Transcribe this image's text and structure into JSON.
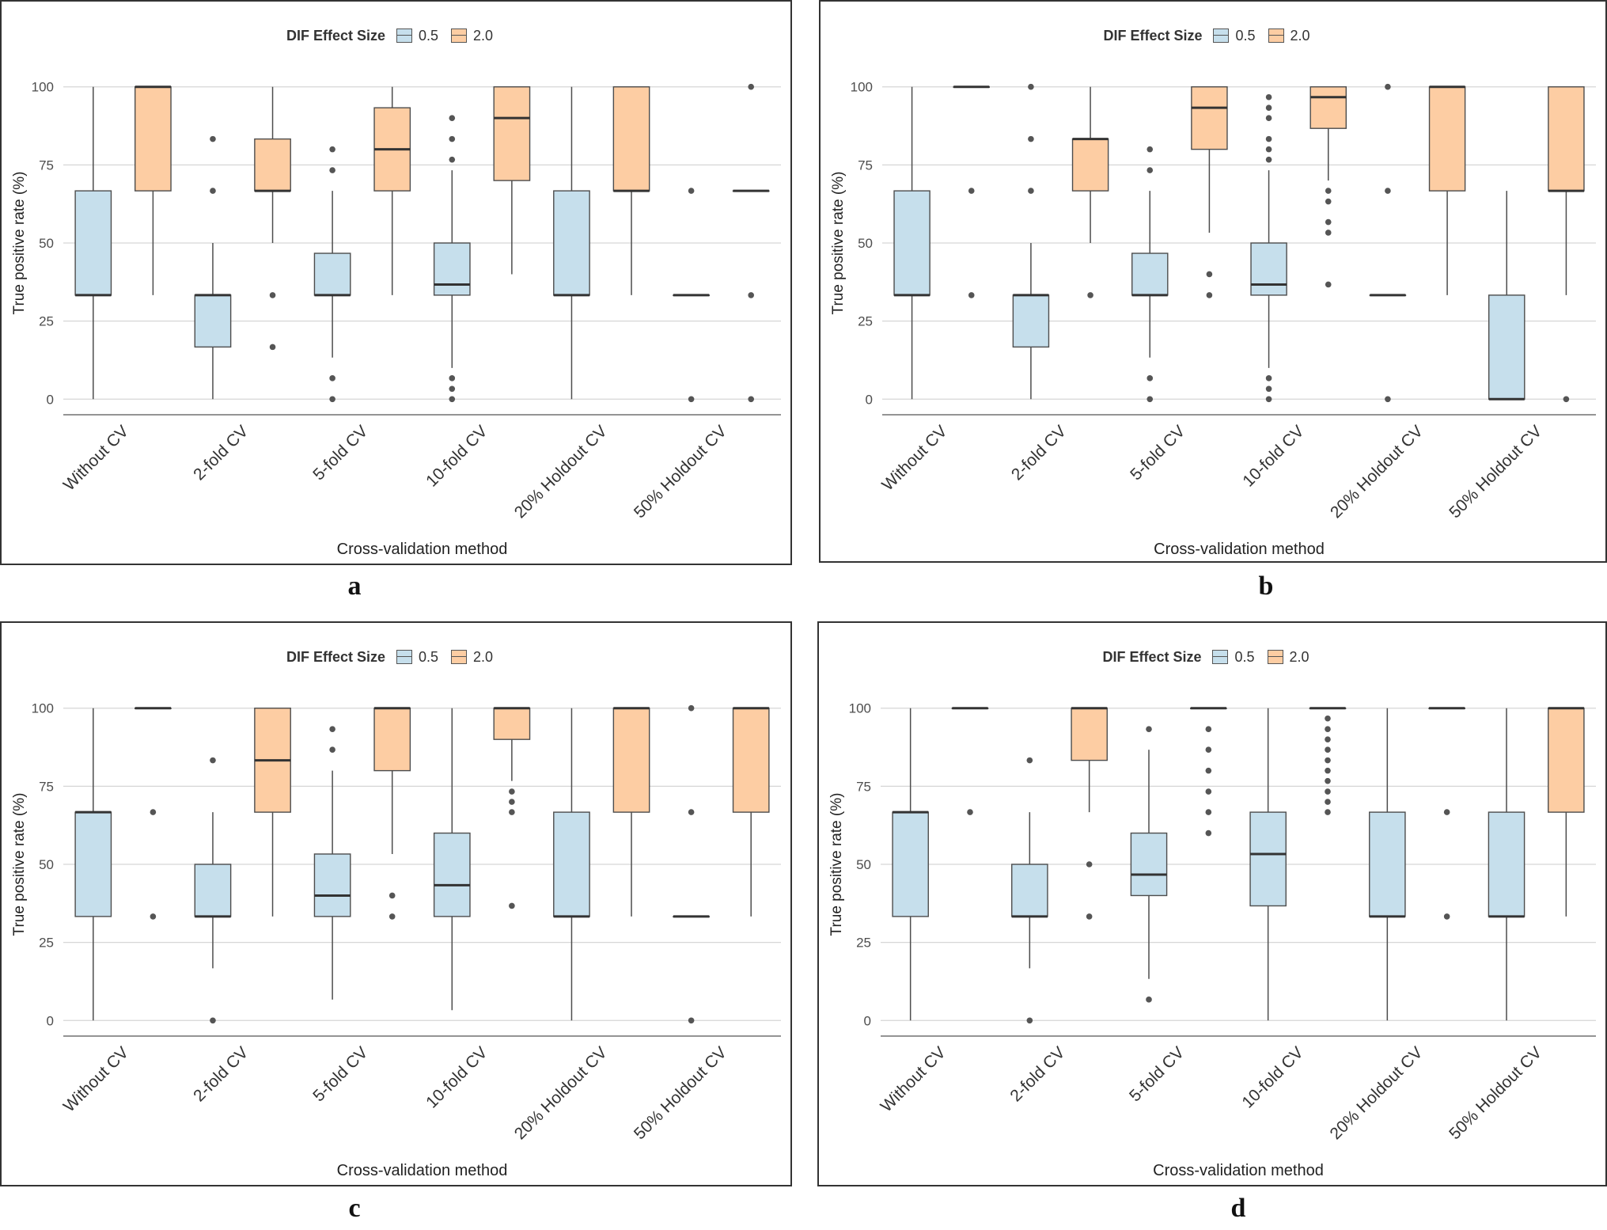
{
  "legend": {
    "title": "DIF Effect Size",
    "items": [
      {
        "label": "0.5",
        "color": "#c6dfec"
      },
      {
        "label": "2.0",
        "color": "#fdcda3"
      }
    ]
  },
  "chart_data": [
    {
      "panel": "a",
      "type": "boxplot",
      "xlabel": "Cross-validation method",
      "ylabel": "True positive rate (%)",
      "ylim": [
        -5,
        105
      ],
      "yticks": [
        0,
        25,
        50,
        75,
        100
      ],
      "grid": "horizontal",
      "legend_position": "top",
      "categories": [
        "Without CV",
        "2-fold CV",
        "5-fold CV",
        "10-fold CV",
        "20% Holdout CV",
        "50% Holdout CV"
      ],
      "series": [
        {
          "name": "0.5",
          "boxes": [
            {
              "min": 0,
              "q1": 33.3,
              "median": 33.3,
              "q3": 66.7,
              "max": 100,
              "outliers": []
            },
            {
              "min": 0,
              "q1": 16.7,
              "median": 33.3,
              "q3": 33.3,
              "max": 50,
              "outliers": [
                66.7,
                83.3
              ]
            },
            {
              "min": 13.3,
              "q1": 33.3,
              "median": 33.3,
              "q3": 46.7,
              "max": 66.7,
              "outliers": [
                0,
                6.7,
                73.3,
                80
              ]
            },
            {
              "min": 10,
              "q1": 33.3,
              "median": 36.7,
              "q3": 50,
              "max": 73.3,
              "outliers": [
                0,
                3.3,
                6.7,
                76.7,
                83.3,
                90
              ]
            },
            {
              "min": 0,
              "q1": 33.3,
              "median": 33.3,
              "q3": 66.7,
              "max": 100,
              "outliers": []
            },
            {
              "min": 33.3,
              "q1": 33.3,
              "median": 33.3,
              "q3": 33.3,
              "max": 33.3,
              "outliers": [
                0,
                66.7
              ]
            }
          ]
        },
        {
          "name": "2.0",
          "boxes": [
            {
              "min": 33.3,
              "q1": 66.7,
              "median": 100,
              "q3": 100,
              "max": 100,
              "outliers": []
            },
            {
              "min": 50,
              "q1": 66.7,
              "median": 66.7,
              "q3": 83.3,
              "max": 100,
              "outliers": [
                16.7,
                33.3
              ]
            },
            {
              "min": 33.3,
              "q1": 66.7,
              "median": 80,
              "q3": 93.3,
              "max": 100,
              "outliers": []
            },
            {
              "min": 40,
              "q1": 70,
              "median": 90,
              "q3": 100,
              "max": 100,
              "outliers": []
            },
            {
              "min": 33.3,
              "q1": 66.7,
              "median": 66.7,
              "q3": 100,
              "max": 100,
              "outliers": []
            },
            {
              "min": 66.7,
              "q1": 66.7,
              "median": 66.7,
              "q3": 66.7,
              "max": 66.7,
              "outliers": [
                0,
                33.3,
                100
              ]
            }
          ]
        }
      ]
    },
    {
      "panel": "b",
      "type": "boxplot",
      "xlabel": "Cross-validation method",
      "ylabel": "True positive rate (%)",
      "ylim": [
        -5,
        105
      ],
      "yticks": [
        0,
        25,
        50,
        75,
        100
      ],
      "grid": "horizontal",
      "legend_position": "top",
      "categories": [
        "Without CV",
        "2-fold CV",
        "5-fold CV",
        "10-fold CV",
        "20% Holdout CV",
        "50% Holdout CV"
      ],
      "series": [
        {
          "name": "0.5",
          "boxes": [
            {
              "min": 0,
              "q1": 33.3,
              "median": 33.3,
              "q3": 66.7,
              "max": 100,
              "outliers": []
            },
            {
              "min": 0,
              "q1": 16.7,
              "median": 33.3,
              "q3": 33.3,
              "max": 50,
              "outliers": [
                66.7,
                83.3,
                100
              ]
            },
            {
              "min": 13.3,
              "q1": 33.3,
              "median": 33.3,
              "q3": 46.7,
              "max": 66.7,
              "outliers": [
                0,
                6.7,
                73.3,
                80
              ]
            },
            {
              "min": 10,
              "q1": 33.3,
              "median": 36.7,
              "q3": 50,
              "max": 73.3,
              "outliers": [
                0,
                3.3,
                6.7,
                76.7,
                80,
                83.3,
                90,
                93.3,
                96.7
              ]
            },
            {
              "min": 33.3,
              "q1": 33.3,
              "median": 33.3,
              "q3": 33.3,
              "max": 33.3,
              "outliers": [
                0,
                66.7,
                100
              ]
            },
            {
              "min": 0,
              "q1": 0,
              "median": 0,
              "q3": 33.3,
              "max": 66.7,
              "outliers": []
            }
          ]
        },
        {
          "name": "2.0",
          "boxes": [
            {
              "min": 100,
              "q1": 100,
              "median": 100,
              "q3": 100,
              "max": 100,
              "outliers": [
                33.3,
                66.7
              ]
            },
            {
              "min": 50,
              "q1": 66.7,
              "median": 83.3,
              "q3": 83.3,
              "max": 100,
              "outliers": [
                33.3
              ]
            },
            {
              "min": 53.3,
              "q1": 80,
              "median": 93.3,
              "q3": 100,
              "max": 100,
              "outliers": [
                33.3,
                40
              ]
            },
            {
              "min": 70,
              "q1": 86.7,
              "median": 96.7,
              "q3": 100,
              "max": 100,
              "outliers": [
                36.7,
                53.3,
                56.7,
                63.3,
                66.7
              ]
            },
            {
              "min": 33.3,
              "q1": 66.7,
              "median": 100,
              "q3": 100,
              "max": 100,
              "outliers": []
            },
            {
              "min": 33.3,
              "q1": 66.7,
              "median": 66.7,
              "q3": 100,
              "max": 100,
              "outliers": [
                0
              ]
            }
          ]
        }
      ]
    },
    {
      "panel": "c",
      "type": "boxplot",
      "xlabel": "Cross-validation method",
      "ylabel": "True positive rate (%)",
      "ylim": [
        -5,
        105
      ],
      "yticks": [
        0,
        25,
        50,
        75,
        100
      ],
      "grid": "horizontal",
      "legend_position": "top",
      "categories": [
        "Without CV",
        "2-fold CV",
        "5-fold CV",
        "10-fold CV",
        "20% Holdout CV",
        "50% Holdout CV"
      ],
      "series": [
        {
          "name": "0.5",
          "boxes": [
            {
              "min": 0,
              "q1": 33.3,
              "median": 66.7,
              "q3": 66.7,
              "max": 100,
              "outliers": []
            },
            {
              "min": 16.7,
              "q1": 33.3,
              "median": 33.3,
              "q3": 50,
              "max": 66.7,
              "outliers": [
                0,
                83.3
              ]
            },
            {
              "min": 6.7,
              "q1": 33.3,
              "median": 40,
              "q3": 53.3,
              "max": 80,
              "outliers": [
                86.7,
                93.3
              ]
            },
            {
              "min": 3.3,
              "q1": 33.3,
              "median": 43.3,
              "q3": 60,
              "max": 100,
              "outliers": []
            },
            {
              "min": 0,
              "q1": 33.3,
              "median": 33.3,
              "q3": 66.7,
              "max": 100,
              "outliers": []
            },
            {
              "min": 33.3,
              "q1": 33.3,
              "median": 33.3,
              "q3": 33.3,
              "max": 33.3,
              "outliers": [
                0,
                66.7,
                100
              ]
            }
          ]
        },
        {
          "name": "2.0",
          "boxes": [
            {
              "min": 100,
              "q1": 100,
              "median": 100,
              "q3": 100,
              "max": 100,
              "outliers": [
                33.3,
                66.7
              ]
            },
            {
              "min": 33.3,
              "q1": 66.7,
              "median": 83.3,
              "q3": 100,
              "max": 100,
              "outliers": []
            },
            {
              "min": 53.3,
              "q1": 80,
              "median": 100,
              "q3": 100,
              "max": 100,
              "outliers": [
                33.3,
                40
              ]
            },
            {
              "min": 76.7,
              "q1": 90,
              "median": 100,
              "q3": 100,
              "max": 100,
              "outliers": [
                36.7,
                66.7,
                70,
                73.3
              ]
            },
            {
              "min": 33.3,
              "q1": 66.7,
              "median": 100,
              "q3": 100,
              "max": 100,
              "outliers": []
            },
            {
              "min": 33.3,
              "q1": 66.7,
              "median": 100,
              "q3": 100,
              "max": 100,
              "outliers": []
            }
          ]
        }
      ]
    },
    {
      "panel": "d",
      "type": "boxplot",
      "xlabel": "Cross-validation method",
      "ylabel": "True positive rate (%)",
      "ylim": [
        -5,
        105
      ],
      "yticks": [
        0,
        25,
        50,
        75,
        100
      ],
      "grid": "horizontal",
      "legend_position": "top",
      "categories": [
        "Without CV",
        "2-fold CV",
        "5-fold CV",
        "10-fold CV",
        "20% Holdout CV",
        "50% Holdout CV"
      ],
      "series": [
        {
          "name": "0.5",
          "boxes": [
            {
              "min": 0,
              "q1": 33.3,
              "median": 66.7,
              "q3": 66.7,
              "max": 100,
              "outliers": []
            },
            {
              "min": 16.7,
              "q1": 33.3,
              "median": 33.3,
              "q3": 50,
              "max": 66.7,
              "outliers": [
                0,
                83.3
              ]
            },
            {
              "min": 13.3,
              "q1": 40,
              "median": 46.7,
              "q3": 60,
              "max": 86.7,
              "outliers": [
                6.7,
                93.3
              ]
            },
            {
              "min": 0,
              "q1": 36.7,
              "median": 53.3,
              "q3": 66.7,
              "max": 100,
              "outliers": []
            },
            {
              "min": 0,
              "q1": 33.3,
              "median": 33.3,
              "q3": 66.7,
              "max": 100,
              "outliers": []
            },
            {
              "min": 0,
              "q1": 33.3,
              "median": 33.3,
              "q3": 66.7,
              "max": 100,
              "outliers": []
            }
          ]
        },
        {
          "name": "2.0",
          "boxes": [
            {
              "min": 100,
              "q1": 100,
              "median": 100,
              "q3": 100,
              "max": 100,
              "outliers": [
                66.7
              ]
            },
            {
              "min": 66.7,
              "q1": 83.3,
              "median": 100,
              "q3": 100,
              "max": 100,
              "outliers": [
                33.3,
                50
              ]
            },
            {
              "min": 100,
              "q1": 100,
              "median": 100,
              "q3": 100,
              "max": 100,
              "outliers": [
                60,
                66.7,
                73.3,
                80,
                86.7,
                93.3
              ]
            },
            {
              "min": 100,
              "q1": 100,
              "median": 100,
              "q3": 100,
              "max": 100,
              "outliers": [
                66.7,
                70,
                73.3,
                76.7,
                80,
                83.3,
                86.7,
                90,
                93.3,
                96.7
              ]
            },
            {
              "min": 100,
              "q1": 100,
              "median": 100,
              "q3": 100,
              "max": 100,
              "outliers": [
                33.3,
                66.7
              ]
            },
            {
              "min": 33.3,
              "q1": 66.7,
              "median": 100,
              "q3": 100,
              "max": 100,
              "outliers": []
            }
          ]
        }
      ]
    }
  ]
}
